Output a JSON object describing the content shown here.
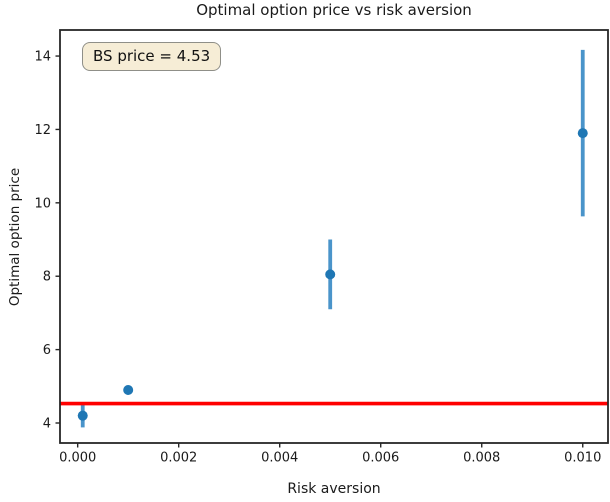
{
  "figure": {
    "background": "#ffffff",
    "frame_color": "#262626",
    "tick_color": "#262626"
  },
  "chart_data": {
    "type": "scatter",
    "title": "Optimal option price vs risk aversion",
    "xlabel": "Risk aversion",
    "ylabel": "Optimal option price",
    "xlim": [
      -0.00035,
      0.0105
    ],
    "ylim": [
      3.455,
      14.71
    ],
    "grid": false,
    "legend": "none",
    "x_ticks": [
      {
        "value": 0.0,
        "label": "0.000"
      },
      {
        "value": 0.002,
        "label": "0.002"
      },
      {
        "value": 0.004,
        "label": "0.004"
      },
      {
        "value": 0.006,
        "label": "0.006"
      },
      {
        "value": 0.008,
        "label": "0.008"
      },
      {
        "value": 0.01,
        "label": "0.010"
      }
    ],
    "y_ticks": [
      {
        "value": 4,
        "label": "4"
      },
      {
        "value": 6,
        "label": "6"
      },
      {
        "value": 8,
        "label": "8"
      },
      {
        "value": 10,
        "label": "10"
      },
      {
        "value": 12,
        "label": "12"
      },
      {
        "value": 14,
        "label": "14"
      }
    ],
    "series": [
      {
        "name": "optimal option price",
        "marker": "circle",
        "marker_color": "#1f77b4",
        "marker_radius": 5,
        "errorbar_color": "#4a94ca",
        "errorbar_width": 3.8,
        "points": [
          {
            "x": 0.0001,
            "y": 4.2,
            "yerr": 0.32
          },
          {
            "x": 0.001,
            "y": 4.9,
            "yerr": 0.08
          },
          {
            "x": 0.005,
            "y": 8.05,
            "yerr": 0.95
          },
          {
            "x": 0.01,
            "y": 11.9,
            "yerr": 2.27
          }
        ]
      }
    ],
    "hline": {
      "y": 4.53,
      "color": "#ff0000",
      "linewidth": 3.6
    },
    "annotation": {
      "text": "BS price = 4.53",
      "facecolor": "#f6edd6",
      "edgecolor": "#8f8f88"
    }
  }
}
